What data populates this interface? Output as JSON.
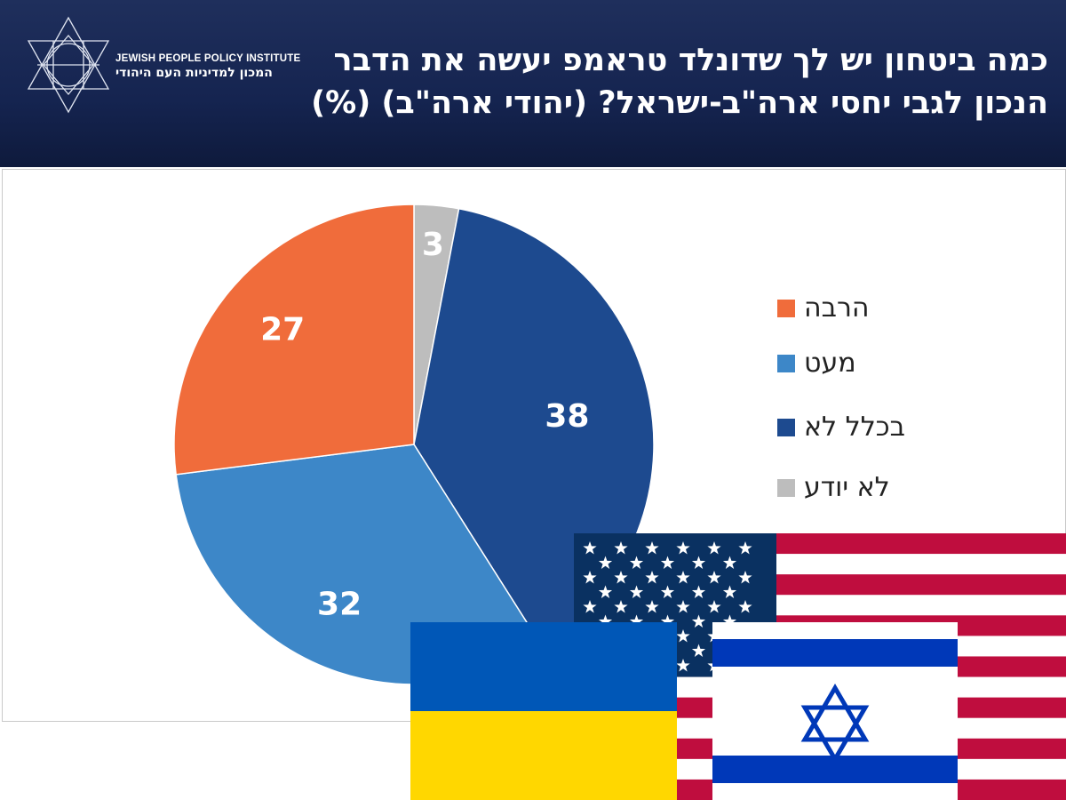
{
  "header": {
    "title_line1": "כמה ביטחון יש לך שדונלד טראמפ יעשה את הדבר",
    "title_line2": "הנכון לגבי יחסי ארה\"ב-ישראל? (יהודי ארה\"ב) (%)",
    "logo_en": "JEWISH PEOPLE POLICY INSTITUTE",
    "logo_he": "המכון למדיניות העם היהודי"
  },
  "chart_data": {
    "type": "pie",
    "title": "כמה ביטחון יש לך שדונלד טראמפ יעשה את הדבר הנכון לגבי יחסי ארה\"ב-ישראל? (יהודי ארה\"ב) (%)",
    "start": "top, clockwise",
    "slices": [
      {
        "label": "לא יודע",
        "value": 3,
        "color": "#bdbdbd"
      },
      {
        "label": "בכלל לא",
        "value": 38,
        "color": "#1d4a8f"
      },
      {
        "label": "מעט",
        "value": 32,
        "color": "#3d87c8"
      },
      {
        "label": "הרבה",
        "value": 27,
        "color": "#f06c3b"
      }
    ],
    "legend": {
      "placement": "right",
      "order": [
        "הרבה",
        "מעט",
        "בכלל לא",
        "לא יודע"
      ]
    }
  },
  "flags": [
    "united-states-flag",
    "ukraine-flag",
    "israel-flag"
  ]
}
